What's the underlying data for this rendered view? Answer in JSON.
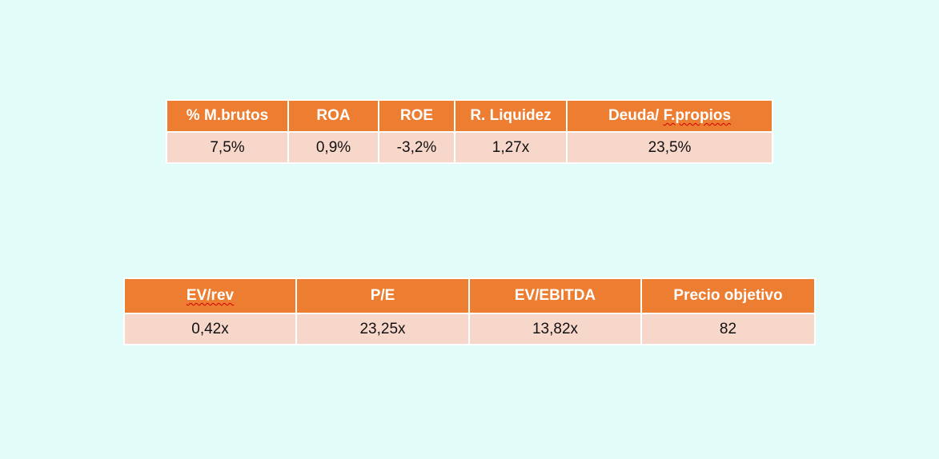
{
  "financial_ratios": {
    "headers": [
      "% M.brutos",
      "ROA",
      "ROE",
      "R. Liquidez"
    ],
    "header_last_prefix": "Deuda/ ",
    "header_last_spell": "F.propios",
    "values": [
      "7,5%",
      "0,9%",
      "-3,2%",
      "1,27x",
      "23,5%"
    ]
  },
  "valuation": {
    "header_first_spell": "EV/rev",
    "headers": [
      "P/E",
      "EV/EBITDA",
      "Precio objetivo"
    ],
    "values": [
      "0,42x",
      "23,25x",
      "13,82x",
      "82"
    ]
  },
  "colors": {
    "background": "#e2fdf9",
    "header_fill": "#ed7d31",
    "cell_fill": "#f8d7cb",
    "header_text": "#ffffff"
  }
}
